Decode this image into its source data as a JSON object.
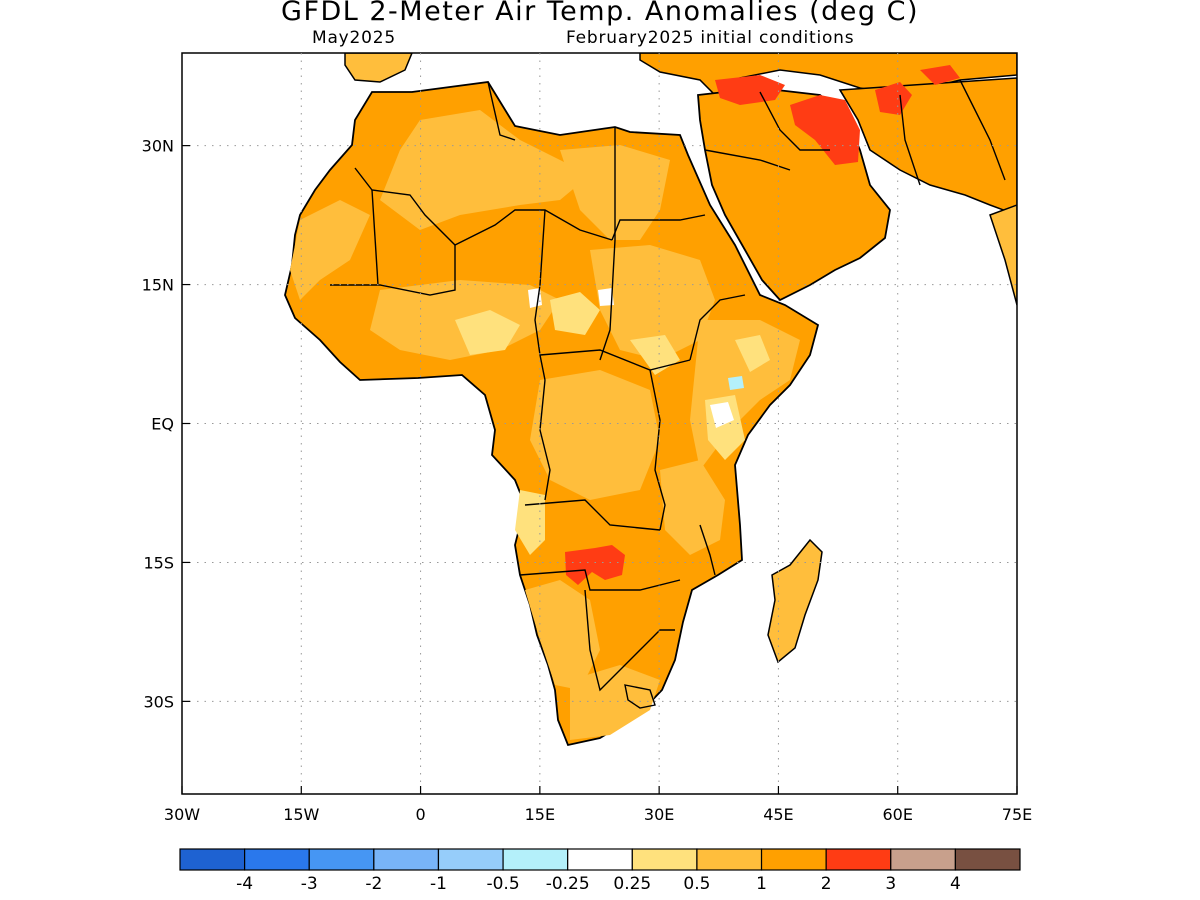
{
  "title": "GFDL 2-Meter Air Temp. Anomalies (deg C)",
  "valid_month": "May2025",
  "init_label": "February2025 initial conditions",
  "map": {
    "lon_range": [
      -30,
      75
    ],
    "lat_range": [
      -40,
      40
    ],
    "lon_ticks": [
      "30W",
      "15W",
      "0",
      "15E",
      "30E",
      "45E",
      "60E",
      "75E"
    ],
    "lat_ticks": [
      "30N",
      "15N",
      "EQ",
      "15S",
      "30S"
    ],
    "gridlines": true
  },
  "anomaly_regions": [
    {
      "name": "Iraq / Gulf hotspot",
      "category": "2 to 3"
    },
    {
      "name": "Iran hotspot",
      "category": "2 to 3"
    },
    {
      "name": "Turkey / Levant hotspot",
      "category": "2 to 3"
    },
    {
      "name": "Zambia / Angola hotspot",
      "category": "2 to 3"
    },
    {
      "name": "Southern Africa",
      "category": "1 to 2"
    },
    {
      "name": "Saharan interior",
      "category": "1 to 2"
    },
    {
      "name": "Arabian Peninsula",
      "category": "1 to 2"
    },
    {
      "name": "Sahel pockets",
      "category": "0.25 to 0.5"
    },
    {
      "name": "Namibian coast",
      "category": "0.25 to 0.5"
    }
  ],
  "colorbar": {
    "colors": [
      "#1e62d2",
      "#2a78ec",
      "#4696f3",
      "#78b4f8",
      "#96cdfa",
      "#b4f0fa",
      "#ffffff",
      "#ffe17d",
      "#ffbe3c",
      "#ffa000",
      "#ff3c14",
      "#c8a08c",
      "#785041"
    ],
    "labels": [
      "-4",
      "-3",
      "-2",
      "-1",
      "-0.5",
      "-0.25",
      "0.25",
      "0.5",
      "1",
      "2",
      "3",
      "4"
    ]
  }
}
